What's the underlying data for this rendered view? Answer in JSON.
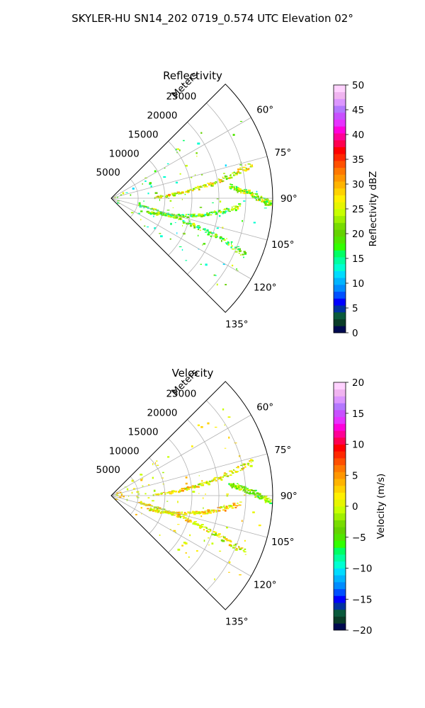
{
  "figure": {
    "suptitle": "SKYLER-HU  SN14_202  0719_0.574 UTC Elevation 02°"
  },
  "chart_data": [
    {
      "type": "polar-sector",
      "title": "Reflectivity",
      "radial_label": "Meters",
      "radial_ticks": [
        5000,
        10000,
        15000,
        20000,
        25000
      ],
      "radial_tick_labels": [
        "5000",
        "10000",
        "15000",
        "20000",
        "25000"
      ],
      "rmax": 30000,
      "theta_range_deg": [
        45,
        135
      ],
      "theta_ticks": [
        60,
        75,
        90,
        105,
        120,
        135
      ],
      "theta_tick_labels": [
        "60°",
        "75°",
        "90°",
        "105°",
        "120°",
        "135°"
      ],
      "grid": true,
      "colorbar": {
        "label": "Reflectivity dBZ",
        "range": [
          0,
          50
        ],
        "ticks": [
          0,
          5,
          10,
          15,
          20,
          25,
          30,
          35,
          40,
          45,
          50
        ],
        "tick_labels": [
          "0",
          "5",
          "10",
          "15",
          "20",
          "25",
          "30",
          "35",
          "40",
          "45",
          "50"
        ],
        "colors": [
          "#000a50",
          "#0a3c28",
          "#0a5a3c",
          "#0032a0",
          "#0000ff",
          "#0050ff",
          "#008cff",
          "#00b4ff",
          "#00dcff",
          "#00ffd2",
          "#00ffa0",
          "#00ff64",
          "#32ff00",
          "#50e600",
          "#64d200",
          "#78dc00",
          "#a0f000",
          "#c8ff00",
          "#e6f500",
          "#fff000",
          "#ffd200",
          "#ffb400",
          "#ff9600",
          "#ff7800",
          "#ff5000",
          "#ff2800",
          "#ff0000",
          "#ff0050",
          "#ff0096",
          "#ff00dc",
          "#e632ff",
          "#c850ff",
          "#b478ff",
          "#dc96ff",
          "#f0b4f0",
          "#ffd2ff"
        ]
      },
      "echoes_description": [
        {
          "from": [
            88,
            8000
          ],
          "to": [
            76,
            27000
          ],
          "level": 25
        },
        {
          "from": [
            110,
            7000
          ],
          "to": [
            93,
            24000
          ],
          "level": 20
        },
        {
          "from": [
            103,
            5000
          ],
          "to": [
            113,
            27000
          ],
          "level": 20
        },
        {
          "from": [
            84,
            22000
          ],
          "to": [
            92,
            29500
          ],
          "level": 22
        }
      ]
    },
    {
      "type": "polar-sector",
      "title": "Velocity",
      "radial_label": "Meters",
      "radial_ticks": [
        5000,
        10000,
        15000,
        20000,
        25000
      ],
      "radial_tick_labels": [
        "5000",
        "10000",
        "15000",
        "20000",
        "25000"
      ],
      "rmax": 30000,
      "theta_range_deg": [
        45,
        135
      ],
      "theta_ticks": [
        60,
        75,
        90,
        105,
        120,
        135
      ],
      "theta_tick_labels": [
        "60°",
        "75°",
        "90°",
        "105°",
        "120°",
        "135°"
      ],
      "grid": true,
      "colorbar": {
        "label": "Velocity (m/s)",
        "range": [
          -20,
          20
        ],
        "ticks": [
          -20,
          -15,
          -10,
          -5,
          0,
          5,
          10,
          15,
          20
        ],
        "tick_labels": [
          "−20",
          "−15",
          "−10",
          "−5",
          "0",
          "5",
          "10",
          "15",
          "20"
        ],
        "colors": [
          "#000a50",
          "#0a3c28",
          "#0a5a3c",
          "#0032a0",
          "#0000ff",
          "#0050ff",
          "#008cff",
          "#00b4ff",
          "#00dcff",
          "#00ffd2",
          "#00ffa0",
          "#00ff64",
          "#32ff00",
          "#50e600",
          "#64d200",
          "#78dc00",
          "#a0f000",
          "#c8ff00",
          "#e6f500",
          "#fff000",
          "#ffd200",
          "#ffb400",
          "#ff9600",
          "#ff7800",
          "#ff5000",
          "#ff2800",
          "#ff0000",
          "#ff0050",
          "#ff0096",
          "#ff00dc",
          "#e632ff",
          "#c850ff",
          "#b478ff",
          "#dc96ff",
          "#f0b4f0",
          "#ffd2ff"
        ]
      },
      "echoes_description": [
        {
          "from": [
            88,
            8000
          ],
          "to": [
            76,
            27000
          ],
          "level": 1
        },
        {
          "from": [
            110,
            7000
          ],
          "to": [
            93,
            24000
          ],
          "level": 2
        },
        {
          "from": [
            103,
            5000
          ],
          "to": [
            113,
            27000
          ],
          "level": 1
        },
        {
          "from": [
            84,
            22000
          ],
          "to": [
            92,
            29500
          ],
          "level": -3
        }
      ]
    }
  ]
}
